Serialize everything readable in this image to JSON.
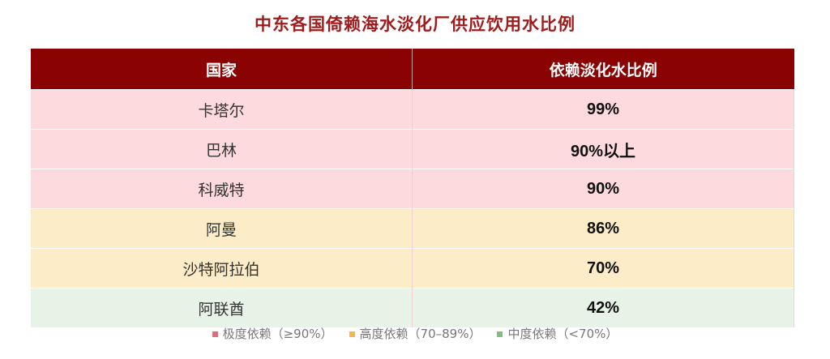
{
  "title": "中东各国倚赖海水淡化厂供应饮用水比例",
  "chart_data": {
    "type": "table",
    "title": "中东各国倚赖海水淡化厂供应饮用水比例",
    "columns": [
      "国家",
      "依赖淡化水比例"
    ],
    "rows": [
      {
        "country": "卡塔尔",
        "share": "99%",
        "level": "extreme"
      },
      {
        "country": "巴林",
        "share": "90%以上",
        "level": "extreme"
      },
      {
        "country": "科威特",
        "share": "90%",
        "level": "extreme"
      },
      {
        "country": "阿曼",
        "share": "86%",
        "level": "high"
      },
      {
        "country": "沙特阿拉伯",
        "share": "70%",
        "level": "high"
      },
      {
        "country": "阿联酋",
        "share": "42%",
        "level": "medium"
      }
    ],
    "legend": [
      {
        "key": "extreme",
        "label": "极度依赖（≥90%）",
        "swatch": "#d9717a",
        "row_color": "#fcdadd"
      },
      {
        "key": "high",
        "label": "高度依赖（70–89%）",
        "swatch": "#f2b84f",
        "row_color": "#fcecc8"
      },
      {
        "key": "medium",
        "label": "中度依赖（<70%）",
        "swatch": "#7fbf7f",
        "row_color": "#e8f3e8"
      }
    ],
    "header_color": "#8b0202"
  }
}
